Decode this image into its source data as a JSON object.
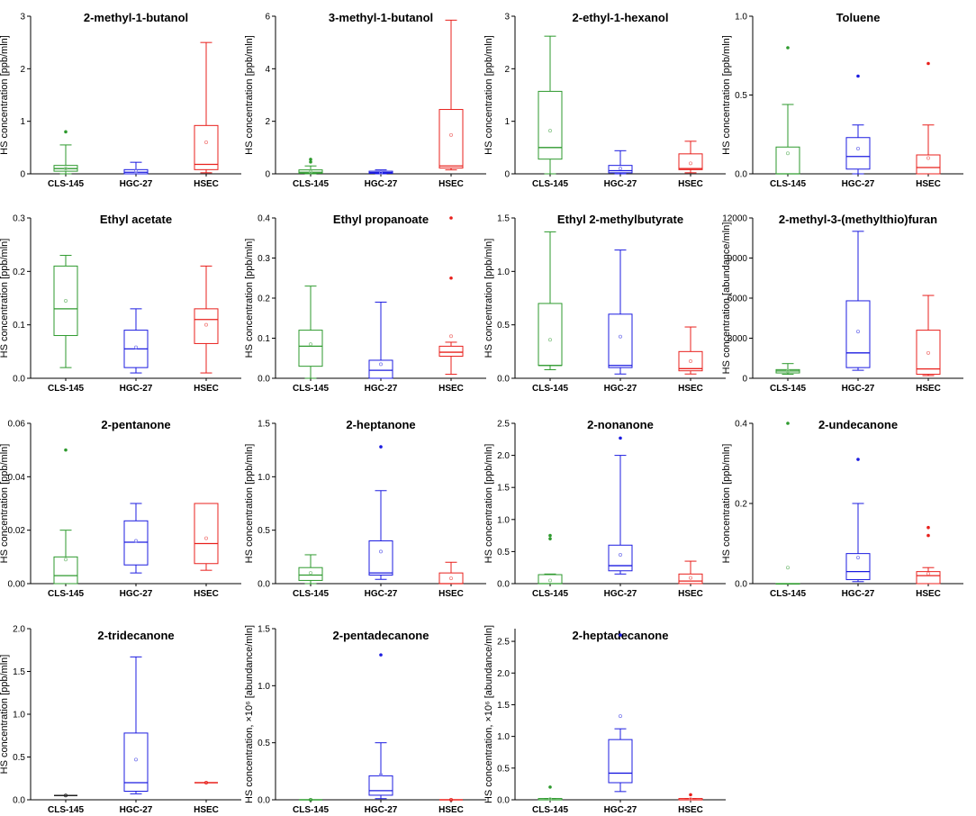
{
  "figure": {
    "groups": [
      "CLS-145",
      "HGC-27",
      "HSEC"
    ],
    "group_colors": [
      "#2e9a2e",
      "#1c1ce0",
      "#e8201c"
    ],
    "ylabel_default": "HS concentration [ppb/mln]",
    "ylabel_abundance": "HS concentration [abundance/mln]"
  },
  "chart_data": [
    {
      "type": "box",
      "title": "2-methyl-1-butanol",
      "ylabel": "HS concentration [ppb/mln]",
      "ylim": [
        0,
        3
      ],
      "ticks": [
        0,
        1,
        2,
        3
      ],
      "tick_labels": [
        "0",
        "1",
        "2",
        "3"
      ],
      "categories": [
        "CLS-145",
        "HGC-27",
        "HSEC"
      ],
      "boxes": [
        {
          "whislo": 0,
          "q1": 0.05,
          "med": 0.1,
          "q3": 0.16,
          "whishi": 0.55,
          "mean": 0.1,
          "fliers": [
            0.8
          ]
        },
        {
          "whislo": 0,
          "q1": 0.0,
          "med": 0.03,
          "q3": 0.08,
          "whishi": 0.22,
          "mean": 0.05,
          "fliers": []
        },
        {
          "whislo": 0.02,
          "q1": 0.08,
          "med": 0.18,
          "q3": 0.92,
          "whishi": 2.5,
          "mean": 0.6,
          "fliers": []
        }
      ]
    },
    {
      "type": "box",
      "title": "3-methyl-1-butanol",
      "ylabel": "HS concentration [ppb/mln]",
      "ylim": [
        0,
        6
      ],
      "ticks": [
        0,
        2,
        4,
        6
      ],
      "tick_labels": [
        "0",
        "2",
        "4",
        "6"
      ],
      "categories": [
        "CLS-145",
        "HGC-27",
        "HSEC"
      ],
      "boxes": [
        {
          "whislo": 0,
          "q1": 0.02,
          "med": 0.06,
          "q3": 0.15,
          "whishi": 0.3,
          "mean": 0.08,
          "fliers": [
            0.45,
            0.55
          ]
        },
        {
          "whislo": 0,
          "q1": 0.02,
          "med": 0.05,
          "q3": 0.1,
          "whishi": 0.15,
          "mean": 0.05,
          "fliers": []
        },
        {
          "whislo": 0.15,
          "q1": 0.22,
          "med": 0.3,
          "q3": 2.45,
          "whishi": 5.85,
          "mean": 1.48,
          "fliers": []
        }
      ]
    },
    {
      "type": "box",
      "title": "2-ethyl-1-hexanol",
      "ylabel": "HS concentration [ppb/mln]",
      "ylim": [
        0,
        3
      ],
      "ticks": [
        0,
        1,
        2,
        3
      ],
      "tick_labels": [
        "0",
        "1",
        "2",
        "3"
      ],
      "categories": [
        "CLS-145",
        "HGC-27",
        "HSEC"
      ],
      "boxes": [
        {
          "whislo": 0,
          "q1": 0.28,
          "med": 0.5,
          "q3": 1.57,
          "whishi": 2.62,
          "mean": 0.82,
          "fliers": []
        },
        {
          "whislo": 0,
          "q1": 0.02,
          "med": 0.06,
          "q3": 0.16,
          "whishi": 0.44,
          "mean": 0.1,
          "fliers": []
        },
        {
          "whislo": 0.02,
          "q1": 0.08,
          "med": 0.1,
          "q3": 0.38,
          "whishi": 0.62,
          "mean": 0.2,
          "fliers": []
        }
      ]
    },
    {
      "type": "box",
      "title": "Toluene",
      "ylabel": "HS concentration [ppb/mln]",
      "ylim": [
        0,
        1.0
      ],
      "ticks": [
        0,
        0.5,
        1.0
      ],
      "tick_labels": [
        "0.0",
        "0.5",
        "1.0"
      ],
      "categories": [
        "CLS-145",
        "HGC-27",
        "HSEC"
      ],
      "boxes": [
        {
          "whislo": 0,
          "q1": 0,
          "med": 0,
          "q3": 0.17,
          "whishi": 0.44,
          "mean": 0.13,
          "fliers": [
            0.8
          ]
        },
        {
          "whislo": 0,
          "q1": 0.03,
          "med": 0.11,
          "q3": 0.23,
          "whishi": 0.31,
          "mean": 0.16,
          "fliers": [
            0.62
          ]
        },
        {
          "whislo": 0,
          "q1": 0,
          "med": 0.04,
          "q3": 0.12,
          "whishi": 0.31,
          "mean": 0.1,
          "fliers": [
            0.7
          ]
        }
      ]
    },
    {
      "type": "box",
      "title": "Ethyl acetate",
      "ylabel": "HS concentration [ppb/mln]",
      "ylim": [
        0,
        0.3
      ],
      "ticks": [
        0,
        0.1,
        0.2,
        0.3
      ],
      "tick_labels": [
        "0.0",
        "0.1",
        "0.2",
        "0.3"
      ],
      "categories": [
        "CLS-145",
        "HGC-27",
        "HSEC"
      ],
      "boxes": [
        {
          "whislo": 0.02,
          "q1": 0.08,
          "med": 0.13,
          "q3": 0.21,
          "whishi": 0.23,
          "mean": 0.145,
          "fliers": []
        },
        {
          "whislo": 0.01,
          "q1": 0.02,
          "med": 0.055,
          "q3": 0.09,
          "whishi": 0.13,
          "mean": 0.058,
          "fliers": []
        },
        {
          "whislo": 0.01,
          "q1": 0.065,
          "med": 0.11,
          "q3": 0.13,
          "whishi": 0.21,
          "mean": 0.1,
          "fliers": []
        }
      ]
    },
    {
      "type": "box",
      "title": "Ethyl propanoate",
      "ylabel": "HS concentration [ppb/mln]",
      "ylim": [
        0,
        0.4
      ],
      "ticks": [
        0,
        0.1,
        0.2,
        0.3,
        0.4
      ],
      "tick_labels": [
        "0.0",
        "0.1",
        "0.2",
        "0.3",
        "0.4"
      ],
      "categories": [
        "CLS-145",
        "HGC-27",
        "HSEC"
      ],
      "boxes": [
        {
          "whislo": 0,
          "q1": 0.03,
          "med": 0.08,
          "q3": 0.12,
          "whishi": 0.23,
          "mean": 0.085,
          "fliers": []
        },
        {
          "whislo": 0,
          "q1": 0,
          "med": 0.02,
          "q3": 0.045,
          "whishi": 0.19,
          "mean": 0.035,
          "fliers": []
        },
        {
          "whislo": 0.01,
          "q1": 0.055,
          "med": 0.065,
          "q3": 0.08,
          "whishi": 0.09,
          "mean": 0.105,
          "fliers": [
            0.25,
            0.4
          ]
        }
      ]
    },
    {
      "type": "box",
      "title": "Ethyl 2-methylbutyrate",
      "ylabel": "HS concentration [ppb/mln]",
      "ylim": [
        0,
        1.5
      ],
      "ticks": [
        0,
        0.5,
        1.0,
        1.5
      ],
      "tick_labels": [
        "0.0",
        "0.5",
        "1.0",
        "1.5"
      ],
      "categories": [
        "CLS-145",
        "HGC-27",
        "HSEC"
      ],
      "boxes": [
        {
          "whislo": 0.08,
          "q1": 0.12,
          "med": 0.12,
          "q3": 0.7,
          "whishi": 1.37,
          "mean": 0.36,
          "fliers": []
        },
        {
          "whislo": 0.04,
          "q1": 0.1,
          "med": 0.12,
          "q3": 0.6,
          "whishi": 1.2,
          "mean": 0.39,
          "fliers": []
        },
        {
          "whislo": 0.04,
          "q1": 0.07,
          "med": 0.09,
          "q3": 0.25,
          "whishi": 0.48,
          "mean": 0.16,
          "fliers": []
        }
      ]
    },
    {
      "type": "box",
      "title": "2-methyl-3-(methylthio)furan",
      "ylabel": "HS concentration [abundance/mln]",
      "ylim": [
        0,
        12000
      ],
      "ticks": [
        0,
        3000,
        6000,
        9000,
        12000
      ],
      "tick_labels": [
        "0",
        "3000",
        "6000",
        "9000",
        "12000"
      ],
      "categories": [
        "CLS-145",
        "HGC-27",
        "HSEC"
      ],
      "boxes": [
        {
          "whislo": 300,
          "q1": 400,
          "med": 550,
          "q3": 650,
          "whishi": 1100,
          "mean": 550,
          "fliers": []
        },
        {
          "whislo": 600,
          "q1": 800,
          "med": 1900,
          "q3": 5800,
          "whishi": 11000,
          "mean": 3500,
          "fliers": []
        },
        {
          "whislo": 200,
          "q1": 300,
          "med": 700,
          "q3": 3600,
          "whishi": 6200,
          "mean": 1900,
          "fliers": []
        }
      ]
    },
    {
      "type": "box",
      "title": "2-pentanone",
      "ylabel": "HS concentration [ppb/mln]",
      "ylim": [
        0,
        0.06
      ],
      "ticks": [
        0,
        0.02,
        0.04,
        0.06
      ],
      "tick_labels": [
        "0.00",
        "0.02",
        "0.04",
        "0.06"
      ],
      "categories": [
        "CLS-145",
        "HGC-27",
        "HSEC"
      ],
      "boxes": [
        {
          "whislo": 0,
          "q1": 0,
          "med": 0.003,
          "q3": 0.01,
          "whishi": 0.02,
          "mean": 0.009,
          "fliers": [
            0.05
          ]
        },
        {
          "whislo": 0.004,
          "q1": 0.007,
          "med": 0.0155,
          "q3": 0.0235,
          "whishi": 0.03,
          "mean": 0.016,
          "fliers": []
        },
        {
          "whislo": 0.005,
          "q1": 0.0075,
          "med": 0.015,
          "q3": 0.03,
          "whishi": 0.03,
          "mean": 0.017,
          "fliers": []
        }
      ]
    },
    {
      "type": "box",
      "title": "2-heptanone",
      "ylabel": "HS concentration [ppb/mln]",
      "ylim": [
        0,
        1.5
      ],
      "ticks": [
        0,
        0.5,
        1.0,
        1.5
      ],
      "tick_labels": [
        "0.0",
        "0.5",
        "1.0",
        "1.5"
      ],
      "categories": [
        "CLS-145",
        "HGC-27",
        "HSEC"
      ],
      "boxes": [
        {
          "whislo": 0,
          "q1": 0.03,
          "med": 0.08,
          "q3": 0.15,
          "whishi": 0.27,
          "mean": 0.1,
          "fliers": []
        },
        {
          "whislo": 0.04,
          "q1": 0.08,
          "med": 0.1,
          "q3": 0.4,
          "whishi": 0.87,
          "mean": 0.3,
          "fliers": [
            1.28
          ]
        },
        {
          "whislo": 0,
          "q1": 0,
          "med": 0,
          "q3": 0.1,
          "whishi": 0.2,
          "mean": 0.05,
          "fliers": []
        }
      ]
    },
    {
      "type": "box",
      "title": "2-nonanone",
      "ylabel": "HS concentration [ppb/mln]",
      "ylim": [
        0,
        2.5
      ],
      "ticks": [
        0,
        0.5,
        1.0,
        1.5,
        2.0,
        2.5
      ],
      "tick_labels": [
        "0.0",
        "0.5",
        "1.0",
        "1.5",
        "2.0",
        "2.5"
      ],
      "categories": [
        "CLS-145",
        "HGC-27",
        "HSEC"
      ],
      "boxes": [
        {
          "whislo": 0,
          "q1": 0,
          "med": 0,
          "q3": 0.14,
          "whishi": 0.15,
          "mean": 0.05,
          "fliers": [
            0.7,
            0.75
          ]
        },
        {
          "whislo": 0.15,
          "q1": 0.2,
          "med": 0.28,
          "q3": 0.6,
          "whishi": 2.0,
          "mean": 0.45,
          "fliers": [
            2.27
          ]
        },
        {
          "whislo": 0,
          "q1": 0,
          "med": 0.04,
          "q3": 0.15,
          "whishi": 0.35,
          "mean": 0.09,
          "fliers": []
        }
      ]
    },
    {
      "type": "box",
      "title": "2-undecanone",
      "ylabel": "HS concentration [ppb/mln]",
      "ylim": [
        0,
        0.4
      ],
      "ticks": [
        0,
        0.2,
        0.4
      ],
      "tick_labels": [
        "0.0",
        "0.2",
        "0.4"
      ],
      "categories": [
        "CLS-145",
        "HGC-27",
        "HSEC"
      ],
      "boxes": [
        {
          "whislo": 0,
          "q1": 0,
          "med": 0,
          "q3": 0,
          "whishi": 0,
          "mean": 0.04,
          "fliers": [
            0.4
          ]
        },
        {
          "whislo": 0.005,
          "q1": 0.01,
          "med": 0.03,
          "q3": 0.075,
          "whishi": 0.2,
          "mean": 0.065,
          "fliers": [
            0.31
          ]
        },
        {
          "whislo": 0,
          "q1": 0,
          "med": 0.02,
          "q3": 0.03,
          "whishi": 0.04,
          "mean": 0.025,
          "fliers": [
            0.12,
            0.14
          ]
        }
      ]
    },
    {
      "type": "box",
      "title": "2-tridecanone",
      "ylabel": "HS concentration [ppb/mln]",
      "ylim": [
        0,
        2.0
      ],
      "ticks": [
        0,
        0.5,
        1.0,
        1.5,
        2.0
      ],
      "tick_labels": [
        "0.0",
        "0.5",
        "1.0",
        "1.5",
        "2.0"
      ],
      "categories": [
        "CLS-145",
        "HGC-27",
        "HSEC"
      ],
      "boxes": [
        {
          "whislo": 0.05,
          "q1": 0.05,
          "med": 0.05,
          "q3": 0.05,
          "whishi": 0.05,
          "mean": 0.05,
          "fliers": [],
          "single": true,
          "color": "#222222"
        },
        {
          "whislo": 0.07,
          "q1": 0.1,
          "med": 0.2,
          "q3": 0.78,
          "whishi": 1.67,
          "mean": 0.47,
          "fliers": []
        },
        {
          "whislo": 0.2,
          "q1": 0.2,
          "med": 0.2,
          "q3": 0.2,
          "whishi": 0.2,
          "mean": 0.2,
          "fliers": [],
          "single": true
        }
      ]
    },
    {
      "type": "box",
      "title": "2-pentadecanone",
      "ylabel": "HS concentration, ×10⁶ [abundance/mln]",
      "ylim": [
        0,
        1.5
      ],
      "ticks": [
        0,
        0.5,
        1.0,
        1.5
      ],
      "tick_labels": [
        "0.0",
        "0.5",
        "1.0",
        "1.5"
      ],
      "categories": [
        "CLS-145",
        "HGC-27",
        "HSEC"
      ],
      "boxes": [
        {
          "whislo": 0,
          "q1": 0,
          "med": 0,
          "q3": 0,
          "whishi": 0,
          "mean": 0,
          "fliers": [],
          "single": true
        },
        {
          "whislo": 0.01,
          "q1": 0.04,
          "med": 0.08,
          "q3": 0.21,
          "whishi": 0.5,
          "mean": 0.22,
          "fliers": [
            1.27
          ]
        },
        {
          "whislo": 0,
          "q1": 0,
          "med": 0,
          "q3": 0,
          "whishi": 0,
          "mean": 0,
          "fliers": [],
          "single": true
        }
      ]
    },
    {
      "type": "box",
      "title": "2-heptadecanone",
      "ylabel": "HS concentration, ×10⁶ [abundance/mln]",
      "ylim": [
        0,
        2.7
      ],
      "ticks": [
        0,
        0.5,
        1.0,
        1.5,
        2.0,
        2.5
      ],
      "tick_labels": [
        "0.0",
        "0.5",
        "1.0",
        "1.5",
        "2.0",
        "2.5"
      ],
      "categories": [
        "CLS-145",
        "HGC-27",
        "HSEC"
      ],
      "boxes": [
        {
          "whislo": 0,
          "q1": 0,
          "med": 0,
          "q3": 0.02,
          "whishi": 0.02,
          "mean": 0.01,
          "fliers": [
            0.2
          ]
        },
        {
          "whislo": 0.13,
          "q1": 0.27,
          "med": 0.42,
          "q3": 0.95,
          "whishi": 1.12,
          "mean": 1.32,
          "fliers": [
            2.6
          ]
        },
        {
          "whislo": 0,
          "q1": 0,
          "med": 0,
          "q3": 0.02,
          "whishi": 0.02,
          "mean": 0.01,
          "fliers": [
            0.08
          ]
        }
      ]
    }
  ]
}
